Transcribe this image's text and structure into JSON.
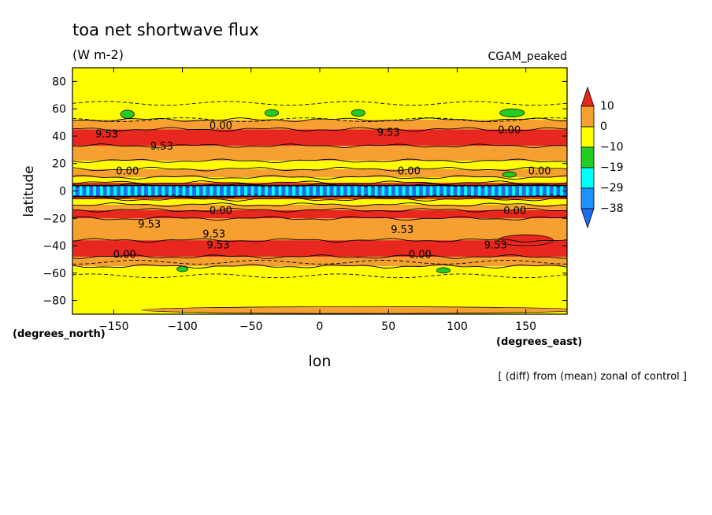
{
  "chart_data": {
    "type": "heatmap",
    "title": "toa net shortwave flux",
    "subtitle": "(W m-2)",
    "run_label": "CGAM_peaked",
    "xlabel": "lon",
    "ylabel": "latitude",
    "x_units": "(degrees_east)",
    "y_units": "(degrees_north)",
    "footnote": "[ (diff) from (mean) zonal of control ]",
    "xlim": [
      -180,
      180
    ],
    "ylim": [
      -90,
      90
    ],
    "x_ticks": [
      -150,
      -100,
      -50,
      0,
      50,
      100,
      150
    ],
    "x_tick_labels": [
      "-150",
      "-100",
      "-50",
      "0",
      "50",
      "100",
      "150"
    ],
    "y_ticks": [
      -80,
      -60,
      -40,
      -20,
      0,
      20,
      40,
      60,
      80
    ],
    "y_tick_labels": [
      "-80",
      "-60",
      "-40",
      "-20",
      "0",
      "20",
      "40",
      "60",
      "80"
    ],
    "colorbar": {
      "levels": [
        10,
        0,
        -10,
        -19,
        -29,
        -38
      ],
      "labels": [
        "10",
        "0",
        "−10",
        "−19",
        "−29",
        "−38"
      ],
      "colors": [
        "#e8281e",
        "#f5a030",
        "#ffff00",
        "#22cc22",
        "#00ffff",
        "#1e90ff",
        "#1e6cf0"
      ]
    },
    "zonal_bands": [
      {
        "lat": [
          -90,
          -55
        ],
        "color": "#ffff00"
      },
      {
        "lat": [
          -55,
          -48
        ],
        "color": "#f5a030"
      },
      {
        "lat": [
          -48,
          -36
        ],
        "color": "#e8281e"
      },
      {
        "lat": [
          -36,
          -20
        ],
        "color": "#f5a030"
      },
      {
        "lat": [
          -20,
          -14
        ],
        "color": "#e8281e"
      },
      {
        "lat": [
          -14,
          -10
        ],
        "color": "#f5a030"
      },
      {
        "lat": [
          -10,
          -6
        ],
        "color": "#ffff00"
      },
      {
        "lat": [
          -6,
          -4
        ],
        "color": "#e8281e"
      },
      {
        "lat": [
          -4,
          4
        ],
        "color": "#1e6cf0"
      },
      {
        "lat": [
          4,
          6
        ],
        "color": "#e8281e"
      },
      {
        "lat": [
          6,
          10
        ],
        "color": "#ffff00"
      },
      {
        "lat": [
          10,
          16
        ],
        "color": "#f5a030"
      },
      {
        "lat": [
          16,
          22
        ],
        "color": "#ffff00"
      },
      {
        "lat": [
          22,
          33
        ],
        "color": "#f5a030"
      },
      {
        "lat": [
          33,
          45
        ],
        "color": "#e8281e"
      },
      {
        "lat": [
          45,
          52
        ],
        "color": "#f5a030"
      },
      {
        "lat": [
          52,
          90
        ],
        "color": "#ffff00"
      }
    ],
    "patches": [
      {
        "lon": 150,
        "lat": -36,
        "rx": 20,
        "ry": 4,
        "color": "#e8281e"
      },
      {
        "lon": -140,
        "lat": 56,
        "rx": 5,
        "ry": 3,
        "color": "#22cc22"
      },
      {
        "lon": -35,
        "lat": 57,
        "rx": 5,
        "ry": 2.5,
        "color": "#22cc22"
      },
      {
        "lon": 28,
        "lat": 57,
        "rx": 5,
        "ry": 2.5,
        "color": "#22cc22"
      },
      {
        "lon": 140,
        "lat": 57,
        "rx": 9,
        "ry": 3,
        "color": "#22cc22"
      },
      {
        "lon": -100,
        "lat": -57,
        "rx": 4,
        "ry": 2,
        "color": "#22cc22"
      },
      {
        "lon": 90,
        "lat": -58,
        "rx": 5,
        "ry": 2,
        "color": "#22cc22"
      },
      {
        "lon": 138,
        "lat": 12,
        "rx": 5,
        "ry": 2,
        "color": "#22cc22"
      },
      {
        "lon": 30,
        "lat": -87,
        "rx": 160,
        "ry": 2.5,
        "color": "#f5a030"
      }
    ],
    "contour_labels": [
      {
        "text": "9.53",
        "lon": -155,
        "lat": 42
      },
      {
        "text": "9.53",
        "lon": -115,
        "lat": 33
      },
      {
        "text": "0.00",
        "lon": -72,
        "lat": 48
      },
      {
        "text": "0.00",
        "lon": -140,
        "lat": 15
      },
      {
        "text": "9.53",
        "lon": 50,
        "lat": 43
      },
      {
        "text": "0.00",
        "lon": 138,
        "lat": 45
      },
      {
        "text": "0.00",
        "lon": 65,
        "lat": 15
      },
      {
        "text": "0.00",
        "lon": 160,
        "lat": 15
      },
      {
        "text": "9.53",
        "lon": -124,
        "lat": -24
      },
      {
        "text": "9.53",
        "lon": -77,
        "lat": -31
      },
      {
        "text": "9.53",
        "lon": -74,
        "lat": -39
      },
      {
        "text": "9.53",
        "lon": 60,
        "lat": -28
      },
      {
        "text": "9.53",
        "lon": 128,
        "lat": -39
      },
      {
        "text": "0.00",
        "lon": -142,
        "lat": -46
      },
      {
        "text": "0.00",
        "lon": 73,
        "lat": -46
      },
      {
        "text": "0.00",
        "lon": -72,
        "lat": -14
      },
      {
        "text": "0.00",
        "lon": 142,
        "lat": -14
      }
    ]
  }
}
